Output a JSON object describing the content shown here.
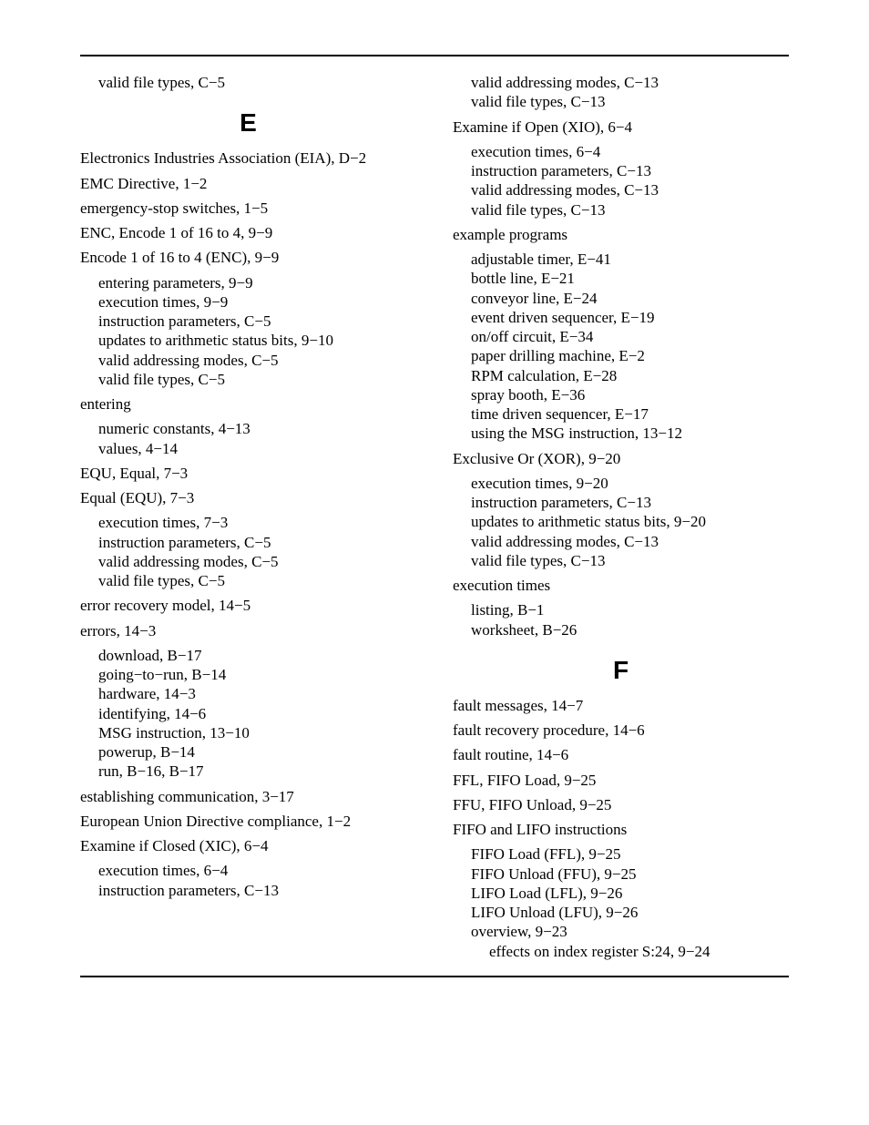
{
  "typography": {
    "body_font": "Times New Roman",
    "heading_font": "Arial",
    "body_fontsize_pt": 13,
    "heading_fontsize_pt": 21,
    "text_color": "#000000",
    "background_color": "#ffffff",
    "rule_color": "#000000"
  },
  "left": {
    "firstline": "valid file types, C−5",
    "letter_E": "E",
    "e1": "Electronics Industries Association (EIA), D−2",
    "e2": "EMC Directive, 1−2",
    "e3": "emergency-stop switches, 1−5",
    "e4": "ENC, Encode 1 of 16 to 4, 9−9",
    "e5": {
      "head": "Encode 1 of 16 to 4 (ENC), 9−9",
      "s1": "entering parameters, 9−9",
      "s2": "execution times, 9−9",
      "s3": "instruction parameters, C−5",
      "s4": "updates to arithmetic status bits, 9−10",
      "s5": "valid addressing modes, C−5",
      "s6": "valid file types, C−5"
    },
    "e6": {
      "head": "entering",
      "s1": "numeric constants, 4−13",
      "s2": "values, 4−14"
    },
    "e7": "EQU, Equal, 7−3",
    "e8": {
      "head": "Equal (EQU), 7−3",
      "s1": "execution times, 7−3",
      "s2": "instruction parameters, C−5",
      "s3": "valid addressing modes, C−5",
      "s4": "valid file types, C−5"
    },
    "e9": "error recovery model, 14−5",
    "e10": {
      "head": "errors, 14−3",
      "s1": "download, B−17",
      "s2": "going−to−run, B−14",
      "s3": "hardware, 14−3",
      "s4": "identifying, 14−6",
      "s5": "MSG instruction, 13−10",
      "s6": "powerup, B−14",
      "s7": "run, B−16, B−17"
    },
    "e11": "establishing communication, 3−17",
    "e12": "European Union Directive compliance, 1−2",
    "e13": {
      "head": "Examine if Closed (XIC), 6−4",
      "s1": "execution times, 6−4",
      "s2": "instruction parameters, C−13"
    }
  },
  "right": {
    "r0": {
      "s1": "valid addressing modes, C−13",
      "s2": "valid file types, C−13"
    },
    "r1": {
      "head": "Examine if Open (XIO), 6−4",
      "s1": "execution times, 6−4",
      "s2": "instruction parameters, C−13",
      "s3": "valid addressing modes, C−13",
      "s4": "valid file types, C−13"
    },
    "r2": {
      "head": "example programs",
      "s1": "adjustable timer, E−41",
      "s2": "bottle line, E−21",
      "s3": "conveyor line, E−24",
      "s4": "event driven sequencer, E−19",
      "s5": "on/off circuit, E−34",
      "s6": "paper drilling machine, E−2",
      "s7": "RPM calculation, E−28",
      "s8": "spray booth, E−36",
      "s9": "time driven sequencer, E−17",
      "s10": "using the MSG instruction, 13−12"
    },
    "r3": {
      "head": "Exclusive Or (XOR), 9−20",
      "s1": "execution times, 9−20",
      "s2": "instruction parameters, C−13",
      "s3": "updates to arithmetic status bits, 9−20",
      "s4": "valid addressing modes, C−13",
      "s5": "valid file types, C−13"
    },
    "r4": {
      "head": "execution times",
      "s1": "listing, B−1",
      "s2": "worksheet, B−26"
    },
    "letter_F": "F",
    "f1": "fault messages, 14−7",
    "f2": "fault recovery procedure, 14−6",
    "f3": "fault routine, 14−6",
    "f4": "FFL, FIFO Load, 9−25",
    "f5": "FFU, FIFO Unload, 9−25",
    "f6": {
      "head": "FIFO and LIFO instructions",
      "s1": "FIFO Load (FFL), 9−25",
      "s2": "FIFO Unload (FFU), 9−25",
      "s3": "LIFO Load (LFL), 9−26",
      "s4": "LIFO Unload (LFU), 9−26",
      "s5": "overview, 9−23",
      "ss1": "effects on index register S:24, 9−24"
    }
  }
}
